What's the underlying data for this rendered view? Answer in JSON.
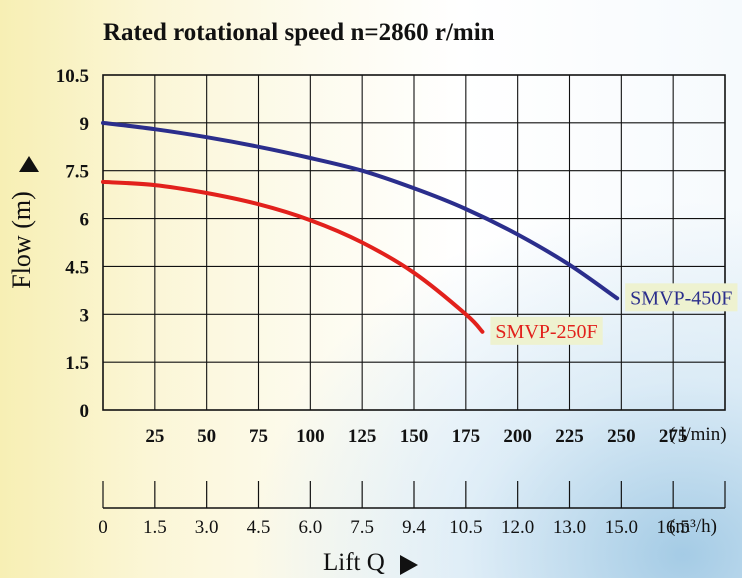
{
  "chart_data": {
    "type": "line",
    "title": "Rated rotational speed n=2860 r/min",
    "ylabel": "Flow (m)",
    "xlabel": "Lift Q",
    "ylim": [
      0,
      10.5
    ],
    "yticks": [
      "0",
      "1.5",
      "3",
      "4.5",
      "6",
      "7.5",
      "9",
      "10.5"
    ],
    "xlim_lmin": [
      0,
      300
    ],
    "x_ticks_lmin": [
      "25",
      "50",
      "75",
      "100",
      "125",
      "150",
      "175",
      "200",
      "225",
      "250",
      "275"
    ],
    "x_unit_lmin": "( l/min)",
    "x_ticks_m3h": [
      "0",
      "1.5",
      "3.0",
      "4.5",
      "6.0",
      "7.5",
      "9.4",
      "10.5",
      "12.0",
      "13.0",
      "15.0",
      "16.5"
    ],
    "x_unit_m3h": "(m³/h)",
    "grid": true,
    "series": [
      {
        "name": "SMVP-450F",
        "color": "#2b2e8c",
        "x": [
          0,
          25,
          50,
          75,
          100,
          125,
          150,
          175,
          200,
          225,
          248
        ],
        "y": [
          9.0,
          8.8,
          8.55,
          8.25,
          7.9,
          7.5,
          6.95,
          6.3,
          5.5,
          4.55,
          3.5
        ]
      },
      {
        "name": "SMVP-250F",
        "color": "#e2211c",
        "x": [
          0,
          25,
          50,
          75,
          100,
          125,
          150,
          175,
          183
        ],
        "y": [
          7.15,
          7.05,
          6.8,
          6.45,
          5.95,
          5.25,
          4.3,
          3.0,
          2.45
        ]
      }
    ],
    "label_bg": "#eef2d0"
  }
}
